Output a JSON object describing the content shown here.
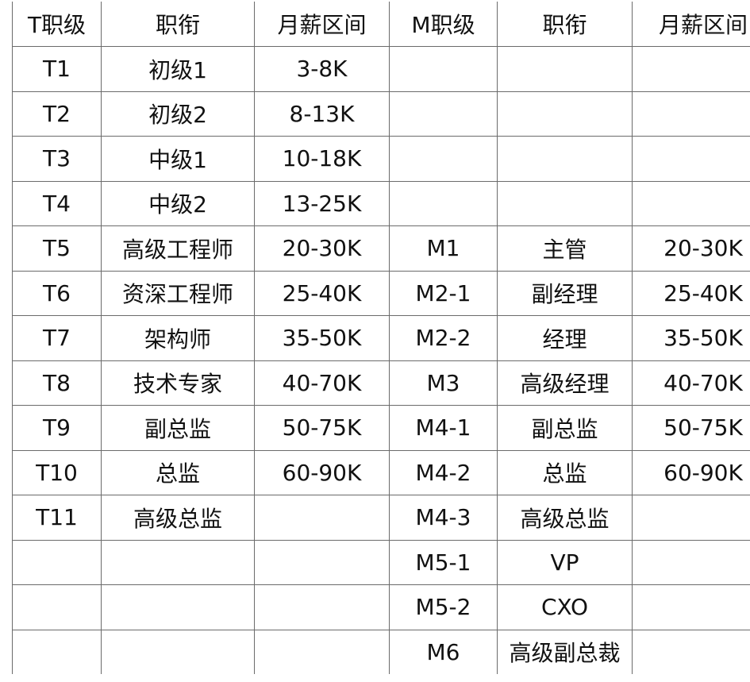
{
  "headers": [
    "T职级",
    "职衔",
    "月薪区间",
    "M职级",
    "职衔",
    "月薪区间"
  ],
  "rows": [
    [
      "T1",
      "初级1",
      "3-8K",
      "",
      "",
      ""
    ],
    [
      "T2",
      "初级2",
      "8-13K",
      "",
      "",
      ""
    ],
    [
      "T3",
      "中级1",
      "10-18K",
      "",
      "",
      ""
    ],
    [
      "T4",
      "中级2",
      "13-25K",
      "",
      "",
      ""
    ],
    [
      "T5",
      "高级工程师",
      "20-30K",
      "M1",
      "主管",
      "20-30K"
    ],
    [
      "T6",
      "资深工程师",
      "25-40K",
      "M2-1",
      "副经理",
      "25-40K"
    ],
    [
      "T7",
      "架构师",
      "35-50K",
      "M2-2",
      "经理",
      "35-50K"
    ],
    [
      "T8",
      "技术专家",
      "40-70K",
      "M3",
      "高级经理",
      "40-70K"
    ],
    [
      "T9",
      "副总监",
      "50-75K",
      "M4-1",
      "副总监",
      "50-75K"
    ],
    [
      "T10",
      "总监",
      "60-90K",
      "M4-2",
      "总监",
      "60-90K"
    ],
    [
      "T11",
      "高级总监",
      "",
      "M4-3",
      "高级总监",
      ""
    ],
    [
      "",
      "",
      "",
      "M5-1",
      "VP",
      ""
    ],
    [
      "",
      "",
      "",
      "M5-2",
      "CXO",
      ""
    ],
    [
      "",
      "",
      "",
      "M6",
      "高级副总裁",
      ""
    ]
  ]
}
